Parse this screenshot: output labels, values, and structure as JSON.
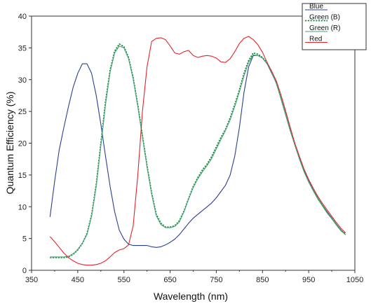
{
  "chart_data": {
    "type": "line",
    "xlabel": "Wavelength (nm)",
    "ylabel": "Quantum Efficiency (%)",
    "xlim": [
      350,
      1050
    ],
    "ylim": [
      0,
      40
    ],
    "x_ticks": [
      350,
      450,
      550,
      650,
      750,
      850,
      950,
      1050
    ],
    "y_ticks": [
      0,
      5,
      10,
      15,
      20,
      25,
      30,
      35,
      40
    ],
    "grid": false,
    "legend_position": "top-right",
    "series": [
      {
        "name": "Blue",
        "color": "#2b3f8f",
        "dash": "solid",
        "points": [
          [
            390,
            8.4
          ],
          [
            400,
            14
          ],
          [
            410,
            19
          ],
          [
            420,
            22.5
          ],
          [
            430,
            25.8
          ],
          [
            440,
            28.8
          ],
          [
            450,
            31
          ],
          [
            460,
            32.5
          ],
          [
            470,
            32.5
          ],
          [
            480,
            31
          ],
          [
            490,
            27.5
          ],
          [
            500,
            23
          ],
          [
            510,
            18
          ],
          [
            520,
            13.2
          ],
          [
            530,
            9.2
          ],
          [
            540,
            6.3
          ],
          [
            550,
            4.9
          ],
          [
            560,
            4.1
          ],
          [
            570,
            3.9
          ],
          [
            580,
            3.9
          ],
          [
            590,
            3.9
          ],
          [
            600,
            3.9
          ],
          [
            610,
            3.7
          ],
          [
            620,
            3.6
          ],
          [
            630,
            3.7
          ],
          [
            640,
            4
          ],
          [
            650,
            4.4
          ],
          [
            660,
            4.9
          ],
          [
            670,
            5.6
          ],
          [
            680,
            6.5
          ],
          [
            690,
            7.4
          ],
          [
            700,
            8.2
          ],
          [
            710,
            8.8
          ],
          [
            720,
            9.4
          ],
          [
            730,
            10
          ],
          [
            740,
            10.6
          ],
          [
            750,
            11.4
          ],
          [
            760,
            12.4
          ],
          [
            770,
            13.4
          ],
          [
            780,
            15
          ],
          [
            790,
            18
          ],
          [
            800,
            22.5
          ],
          [
            810,
            28
          ],
          [
            820,
            32
          ],
          [
            830,
            33.8
          ],
          [
            840,
            33.8
          ],
          [
            850,
            33.4
          ],
          [
            860,
            32.5
          ],
          [
            870,
            31
          ],
          [
            880,
            29.5
          ],
          [
            890,
            27
          ],
          [
            900,
            24.5
          ],
          [
            910,
            22
          ],
          [
            920,
            19.8
          ],
          [
            930,
            17.6
          ],
          [
            940,
            15.7
          ],
          [
            950,
            14
          ],
          [
            960,
            12.6
          ],
          [
            970,
            11.3
          ],
          [
            980,
            10.2
          ],
          [
            990,
            9.2
          ],
          [
            1000,
            8.2
          ],
          [
            1010,
            7.2
          ],
          [
            1020,
            6.3
          ],
          [
            1030,
            5.6
          ]
        ]
      },
      {
        "name": "Green (B)",
        "color": "#1e8a3c",
        "dash": "dotted",
        "points": [
          [
            390,
            2
          ],
          [
            400,
            2
          ],
          [
            410,
            2
          ],
          [
            420,
            2
          ],
          [
            430,
            2.1
          ],
          [
            440,
            2.5
          ],
          [
            450,
            3.2
          ],
          [
            460,
            4.2
          ],
          [
            470,
            5.8
          ],
          [
            480,
            8.7
          ],
          [
            490,
            13.5
          ],
          [
            500,
            20
          ],
          [
            510,
            26.5
          ],
          [
            520,
            31.5
          ],
          [
            530,
            34.5
          ],
          [
            540,
            35.6
          ],
          [
            550,
            35.2
          ],
          [
            560,
            33.5
          ],
          [
            570,
            30.3
          ],
          [
            580,
            26
          ],
          [
            590,
            21.2
          ],
          [
            600,
            16.5
          ],
          [
            610,
            12.2
          ],
          [
            620,
            8.8
          ],
          [
            630,
            7.4
          ],
          [
            640,
            6.8
          ],
          [
            650,
            6.8
          ],
          [
            660,
            7
          ],
          [
            670,
            7.8
          ],
          [
            680,
            9.3
          ],
          [
            690,
            11.3
          ],
          [
            700,
            13.2
          ],
          [
            710,
            14.6
          ],
          [
            720,
            15.8
          ],
          [
            730,
            16.7
          ],
          [
            740,
            17.9
          ],
          [
            750,
            19.4
          ],
          [
            760,
            20.9
          ],
          [
            770,
            22.2
          ],
          [
            780,
            24
          ],
          [
            790,
            26.1
          ],
          [
            800,
            28.4
          ],
          [
            810,
            31
          ],
          [
            820,
            33
          ],
          [
            830,
            34.2
          ],
          [
            840,
            34
          ],
          [
            850,
            33.5
          ],
          [
            860,
            32.6
          ],
          [
            870,
            31.2
          ],
          [
            880,
            29.5
          ],
          [
            890,
            27.2
          ],
          [
            900,
            24.7
          ],
          [
            910,
            22.1
          ],
          [
            920,
            19.8
          ],
          [
            930,
            17.6
          ],
          [
            940,
            15.6
          ],
          [
            950,
            14
          ],
          [
            960,
            12.6
          ],
          [
            970,
            11.3
          ],
          [
            980,
            10.2
          ],
          [
            990,
            9.1
          ],
          [
            1000,
            8.2
          ],
          [
            1010,
            7.2
          ],
          [
            1020,
            6.3
          ],
          [
            1030,
            5.7
          ]
        ]
      },
      {
        "name": "Green (R)",
        "color": "#4aa37a",
        "dash": "solid",
        "points": [
          [
            390,
            2.1
          ],
          [
            400,
            2.1
          ],
          [
            410,
            2.1
          ],
          [
            420,
            2.1
          ],
          [
            430,
            2.2
          ],
          [
            440,
            2.6
          ],
          [
            450,
            3.3
          ],
          [
            460,
            4.3
          ],
          [
            470,
            5.6
          ],
          [
            480,
            8.5
          ],
          [
            490,
            13.2
          ],
          [
            500,
            19.6
          ],
          [
            510,
            26
          ],
          [
            520,
            31.2
          ],
          [
            530,
            34.2
          ],
          [
            540,
            35.3
          ],
          [
            550,
            35
          ],
          [
            560,
            33.3
          ],
          [
            570,
            30.1
          ],
          [
            580,
            25.8
          ],
          [
            590,
            21
          ],
          [
            600,
            16.3
          ],
          [
            610,
            12
          ],
          [
            620,
            8.6
          ],
          [
            630,
            7.2
          ],
          [
            640,
            6.7
          ],
          [
            650,
            6.7
          ],
          [
            660,
            6.9
          ],
          [
            670,
            7.6
          ],
          [
            680,
            9.2
          ],
          [
            690,
            11.2
          ],
          [
            700,
            13
          ],
          [
            710,
            14.4
          ],
          [
            720,
            15.5
          ],
          [
            730,
            16.5
          ],
          [
            740,
            17.6
          ],
          [
            750,
            19.1
          ],
          [
            760,
            20.6
          ],
          [
            770,
            22
          ],
          [
            780,
            23.7
          ],
          [
            790,
            25.8
          ],
          [
            800,
            28.1
          ],
          [
            810,
            30.6
          ],
          [
            820,
            32.7
          ],
          [
            830,
            33.9
          ],
          [
            840,
            33.8
          ],
          [
            850,
            33.4
          ],
          [
            860,
            32.5
          ],
          [
            870,
            31.1
          ],
          [
            880,
            29.4
          ],
          [
            890,
            27.1
          ],
          [
            900,
            24.6
          ],
          [
            910,
            22
          ],
          [
            920,
            19.7
          ],
          [
            930,
            17.5
          ],
          [
            940,
            15.5
          ],
          [
            950,
            13.9
          ],
          [
            960,
            12.5
          ],
          [
            970,
            11.2
          ],
          [
            980,
            10.1
          ],
          [
            990,
            9
          ],
          [
            1000,
            8.1
          ],
          [
            1010,
            7.1
          ],
          [
            1020,
            6.2
          ],
          [
            1030,
            5.6
          ]
        ]
      },
      {
        "name": "Red",
        "color": "#e0262b",
        "dash": "solid",
        "points": [
          [
            390,
            5.3
          ],
          [
            400,
            4.5
          ],
          [
            410,
            3.6
          ],
          [
            420,
            2.7
          ],
          [
            430,
            2
          ],
          [
            440,
            1.5
          ],
          [
            450,
            1.1
          ],
          [
            460,
            0.9
          ],
          [
            470,
            0.8
          ],
          [
            480,
            0.8
          ],
          [
            490,
            0.9
          ],
          [
            500,
            1.1
          ],
          [
            510,
            1.5
          ],
          [
            520,
            2.1
          ],
          [
            530,
            2.8
          ],
          [
            540,
            3.2
          ],
          [
            550,
            3.4
          ],
          [
            560,
            4
          ],
          [
            570,
            7
          ],
          [
            580,
            15
          ],
          [
            590,
            25
          ],
          [
            600,
            32
          ],
          [
            610,
            36
          ],
          [
            620,
            36.5
          ],
          [
            630,
            36.6
          ],
          [
            640,
            36.3
          ],
          [
            650,
            35.3
          ],
          [
            660,
            34.2
          ],
          [
            670,
            34
          ],
          [
            680,
            34.4
          ],
          [
            690,
            34.6
          ],
          [
            700,
            33.8
          ],
          [
            710,
            33.5
          ],
          [
            720,
            33.7
          ],
          [
            730,
            33.8
          ],
          [
            740,
            33.7
          ],
          [
            750,
            33.4
          ],
          [
            760,
            32.8
          ],
          [
            770,
            32.7
          ],
          [
            780,
            33.3
          ],
          [
            790,
            34.4
          ],
          [
            800,
            35.7
          ],
          [
            810,
            36.5
          ],
          [
            820,
            36.8
          ],
          [
            830,
            36.3
          ],
          [
            840,
            35.5
          ],
          [
            850,
            34.3
          ],
          [
            860,
            32.7
          ],
          [
            870,
            31.3
          ],
          [
            880,
            29.8
          ],
          [
            890,
            27.6
          ],
          [
            900,
            25.1
          ],
          [
            910,
            22.5
          ],
          [
            920,
            20
          ],
          [
            930,
            17.9
          ],
          [
            940,
            15.9
          ],
          [
            950,
            14.3
          ],
          [
            960,
            12.9
          ],
          [
            970,
            11.6
          ],
          [
            980,
            10.5
          ],
          [
            990,
            9.5
          ],
          [
            1000,
            8.5
          ],
          [
            1010,
            7.5
          ],
          [
            1020,
            6.6
          ],
          [
            1030,
            5.9
          ]
        ]
      }
    ]
  }
}
